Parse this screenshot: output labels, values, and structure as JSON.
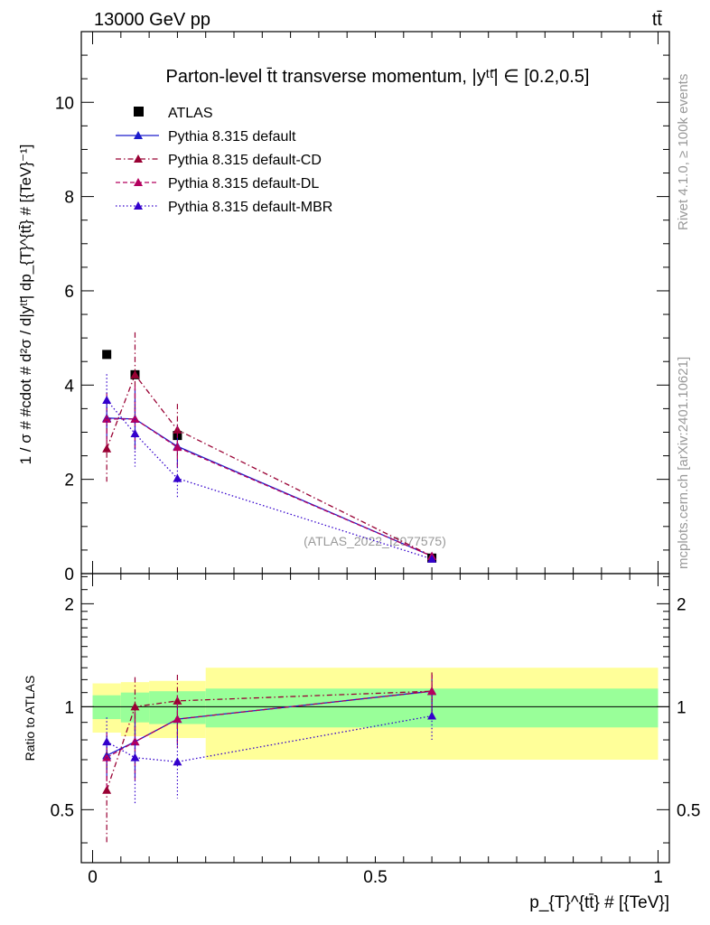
{
  "header": {
    "energy_label": "13000 GeV pp",
    "process_label": "tt̄"
  },
  "side": {
    "rivet_label": "Rivet 4.1.0, ≥ 100k events",
    "mcplots_label": "mcplots.cern.ch [arXiv:2401.10621]"
  },
  "colors": {
    "atlas": "#000000",
    "default": "#1c1ccc",
    "cd": "#990033",
    "dl": "#b3005e",
    "mbr": "#3300cc",
    "band_inner": "#99ff99",
    "band_outer": "#ffff99"
  },
  "chart_data": [
    {
      "type": "scatter",
      "title": "Parton-level t̄t transverse momentum, |yᵗᵗ̄| ∈ [0.2,0.5]",
      "xlabel": "p_{T}^{tt̄} # [{TeV}]",
      "ylabel": "1 / σ # #cdot # d²σ / d|yᵗᵗ̄| dp_{T}^{tt̄} # [{TeV}⁻¹]",
      "xlim": [
        -0.02,
        1.02
      ],
      "ylim": [
        0,
        11.5
      ],
      "yticks": [
        "0",
        "2",
        "4",
        "6",
        "8",
        "10"
      ],
      "watermark": "(ATLAS_2022_I2077575)",
      "legend_position": "top-left",
      "bins": [
        [
          0,
          0.05
        ],
        [
          0.05,
          0.1
        ],
        [
          0.1,
          0.2
        ],
        [
          0.2,
          1.0
        ]
      ],
      "x": [
        0.025,
        0.075,
        0.15,
        0.6
      ],
      "series": [
        {
          "name": "ATLAS",
          "key": "atlas",
          "style": "square",
          "values": [
            4.65,
            4.22,
            2.93,
            0.33
          ],
          "errors": [
            0,
            0,
            0,
            0
          ]
        },
        {
          "name": "Pythia 8.315 default",
          "key": "default",
          "style": "solid",
          "values": [
            3.3,
            3.28,
            2.7,
            0.37
          ],
          "errors": [
            0.45,
            0.65,
            0.45,
            0.04
          ]
        },
        {
          "name": "Pythia 8.315 default-CD",
          "key": "cd",
          "style": "dashdot",
          "values": [
            2.65,
            4.22,
            3.05,
            0.37
          ],
          "errors": [
            0.7,
            0.9,
            0.55,
            0.05
          ]
        },
        {
          "name": "Pythia 8.315 default-DL",
          "key": "dl",
          "style": "dash",
          "values": [
            3.28,
            3.28,
            2.68,
            0.37
          ],
          "errors": [
            0.55,
            0.7,
            0.45,
            0.04
          ]
        },
        {
          "name": "Pythia 8.315 default-MBR",
          "key": "mbr",
          "style": "dot",
          "values": [
            3.68,
            2.97,
            2.02,
            0.31
          ],
          "errors": [
            0.55,
            0.7,
            0.4,
            0.05
          ]
        }
      ]
    },
    {
      "type": "scatter",
      "title": "",
      "xlabel": "p_{T}^{tt̄} # [{TeV}]",
      "ylabel": "Ratio to ATLAS",
      "xlim": [
        -0.02,
        1.02
      ],
      "ylim": [
        0.35,
        2.45
      ],
      "yticks": [
        "0.5",
        "1",
        "2"
      ],
      "xticks": [
        "0",
        "0.5",
        "1"
      ],
      "bins": [
        [
          0,
          0.05
        ],
        [
          0.05,
          0.1
        ],
        [
          0.1,
          0.2
        ],
        [
          0.2,
          1.0
        ]
      ],
      "band_inner": [
        [
          0.92,
          1.08
        ],
        [
          0.9,
          1.1
        ],
        [
          0.89,
          1.11
        ],
        [
          0.87,
          1.13
        ]
      ],
      "band_outer": [
        [
          0.84,
          1.17
        ],
        [
          0.82,
          1.18
        ],
        [
          0.81,
          1.19
        ],
        [
          0.7,
          1.3
        ]
      ],
      "x": [
        0.025,
        0.075,
        0.15,
        0.6
      ],
      "series": [
        {
          "name": "Pythia 8.315 default",
          "key": "default",
          "style": "solid",
          "values": [
            0.72,
            0.79,
            0.92,
            1.11
          ],
          "errors": [
            0.1,
            0.17,
            0.15,
            0.13
          ]
        },
        {
          "name": "Pythia 8.315 default-CD",
          "key": "cd",
          "style": "dashdot",
          "values": [
            0.57,
            1.0,
            1.04,
            1.11
          ],
          "errors": [
            0.17,
            0.22,
            0.2,
            0.15
          ]
        },
        {
          "name": "Pythia 8.315 default-DL",
          "key": "dl",
          "style": "dash",
          "values": [
            0.71,
            0.79,
            0.92,
            1.11
          ],
          "errors": [
            0.13,
            0.18,
            0.16,
            0.13
          ]
        },
        {
          "name": "Pythia 8.315 default-MBR",
          "key": "mbr",
          "style": "dot",
          "values": [
            0.79,
            0.71,
            0.69,
            0.94
          ],
          "errors": [
            0.14,
            0.19,
            0.15,
            0.14
          ]
        }
      ]
    }
  ]
}
